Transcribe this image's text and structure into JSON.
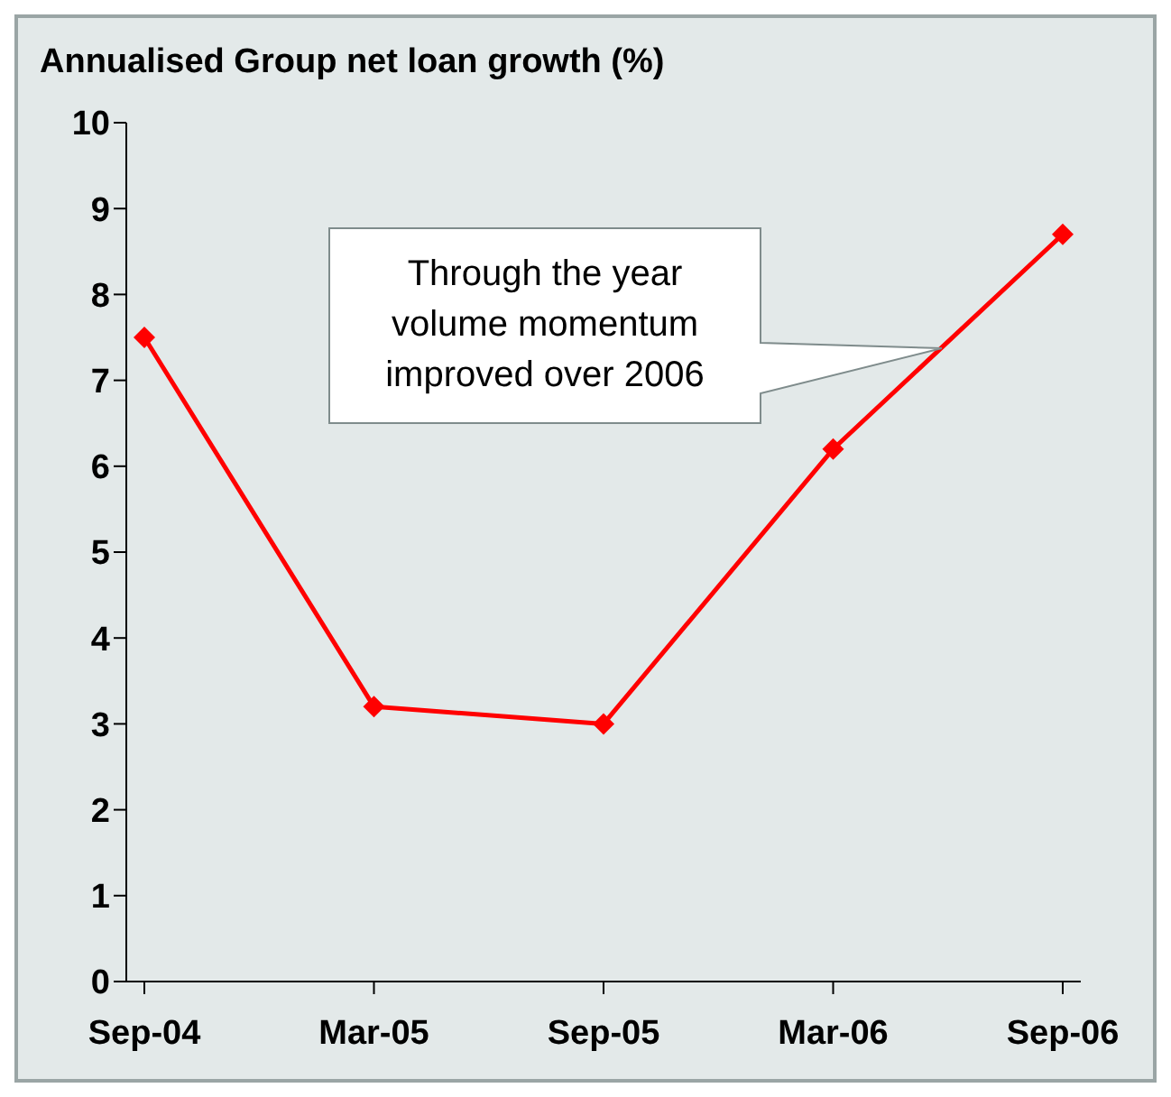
{
  "chart_data": {
    "type": "line",
    "title": "Annualised Group net loan growth (%)",
    "categories": [
      "Sep-04",
      "Mar-05",
      "Sep-05",
      "Mar-06",
      "Sep-06"
    ],
    "series": [
      {
        "color": "#ff0000",
        "values": [
          7.5,
          3.2,
          3.0,
          6.2,
          8.7
        ]
      }
    ],
    "ylim": [
      0,
      10
    ],
    "yticks": [
      0,
      1,
      2,
      3,
      4,
      5,
      6,
      7,
      8,
      9,
      10
    ],
    "grid": false,
    "legend": false,
    "marker": "diamond",
    "line_style": "solid",
    "annotations": [
      "Through the year volume momentum improved over 2006"
    ]
  }
}
